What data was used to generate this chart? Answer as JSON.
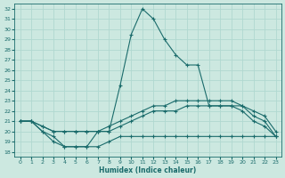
{
  "xlabel": "Humidex (Indice chaleur)",
  "xlim": [
    -0.5,
    23.5
  ],
  "ylim": [
    17.5,
    32.5
  ],
  "yticks": [
    18,
    19,
    20,
    21,
    22,
    23,
    24,
    25,
    26,
    27,
    28,
    29,
    30,
    31,
    32
  ],
  "xticks": [
    0,
    1,
    2,
    3,
    4,
    5,
    6,
    7,
    8,
    9,
    10,
    11,
    12,
    13,
    14,
    15,
    16,
    17,
    18,
    19,
    20,
    21,
    22,
    23
  ],
  "background_color": "#cce8e0",
  "grid_color": "#b0d8d0",
  "line_color": "#1a6b6b",
  "line1_x": [
    0,
    1,
    2,
    3,
    4,
    5,
    6,
    7,
    8,
    9,
    10,
    11,
    12,
    13,
    14,
    15,
    16,
    17,
    18,
    19,
    20,
    21,
    22,
    23
  ],
  "line1_y": [
    21,
    21,
    20,
    19.5,
    18.5,
    18.5,
    18.5,
    20,
    20,
    24.5,
    29.5,
    32,
    31,
    29,
    27.5,
    26.5,
    26.5,
    22.5,
    22.5,
    22.5,
    22,
    21,
    20.5,
    19.5
  ],
  "line2_x": [
    0,
    1,
    2,
    3,
    4,
    5,
    6,
    7,
    8,
    9,
    10,
    11,
    12,
    13,
    14,
    15,
    16,
    17,
    18,
    19,
    20,
    21,
    22,
    23
  ],
  "line2_y": [
    21,
    21,
    20.5,
    20,
    20,
    20,
    20,
    20,
    20.5,
    21,
    21.5,
    22,
    22.5,
    22.5,
    23,
    23,
    23,
    23,
    23,
    23,
    22.5,
    22,
    21.5,
    20
  ],
  "line3_x": [
    0,
    1,
    2,
    3,
    4,
    5,
    6,
    7,
    8,
    9,
    10,
    11,
    12,
    13,
    14,
    15,
    16,
    17,
    18,
    19,
    20,
    21,
    22,
    23
  ],
  "line3_y": [
    21,
    21,
    20.5,
    20,
    20,
    20,
    20,
    20,
    20,
    20.5,
    21,
    21.5,
    22,
    22,
    22,
    22.5,
    22.5,
    22.5,
    22.5,
    22.5,
    22.5,
    21.5,
    21,
    19.5
  ],
  "line4_x": [
    0,
    1,
    2,
    3,
    4,
    5,
    6,
    7,
    8,
    9,
    10,
    11,
    12,
    13,
    14,
    15,
    16,
    17,
    18,
    19,
    20,
    21,
    22,
    23
  ],
  "line4_y": [
    21,
    21,
    20,
    19,
    18.5,
    18.5,
    18.5,
    18.5,
    19,
    19.5,
    19.5,
    19.5,
    19.5,
    19.5,
    19.5,
    19.5,
    19.5,
    19.5,
    19.5,
    19.5,
    19.5,
    19.5,
    19.5,
    19.5
  ],
  "figsize": [
    3.2,
    2.0
  ],
  "dpi": 100
}
